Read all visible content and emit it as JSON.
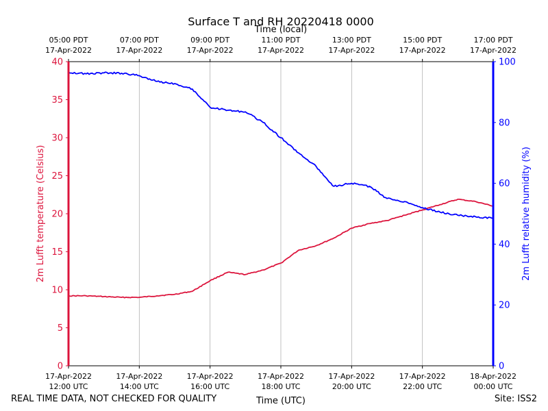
{
  "chart_data": {
    "type": "line",
    "title": "Surface T and RH 20220418 0000",
    "xlabel_top": "Time (local)",
    "xlabel_bottom": "Time (UTC)",
    "ylabel_left": "2m Lufft temperature (Celsius)",
    "ylabel_right": "2m Lufft relative humidity (%)",
    "colors": {
      "temperature": "#dc143c",
      "humidity": "#0000ff",
      "grid": "#b0b0b0"
    },
    "xlim": [
      0,
      12
    ],
    "ylim_left": [
      0,
      40
    ],
    "ylim_right": [
      0,
      100
    ],
    "left_ticks": [
      "0",
      "5",
      "10",
      "15",
      "20",
      "25",
      "30",
      "35",
      "40"
    ],
    "right_ticks": [
      "0",
      "20",
      "40",
      "60",
      "80",
      "100"
    ],
    "bottom_ticks": [
      {
        "line1": "17-Apr-2022",
        "line2": "12:00 UTC"
      },
      {
        "line1": "17-Apr-2022",
        "line2": "14:00 UTC"
      },
      {
        "line1": "17-Apr-2022",
        "line2": "16:00 UTC"
      },
      {
        "line1": "17-Apr-2022",
        "line2": "18:00 UTC"
      },
      {
        "line1": "17-Apr-2022",
        "line2": "20:00 UTC"
      },
      {
        "line1": "17-Apr-2022",
        "line2": "22:00 UTC"
      },
      {
        "line1": "18-Apr-2022",
        "line2": "00:00 UTC"
      }
    ],
    "top_ticks": [
      {
        "line1": "05:00 PDT",
        "line2": "17-Apr-2022"
      },
      {
        "line1": "07:00 PDT",
        "line2": "17-Apr-2022"
      },
      {
        "line1": "09:00 PDT",
        "line2": "17-Apr-2022"
      },
      {
        "line1": "11:00 PDT",
        "line2": "17-Apr-2022"
      },
      {
        "line1": "13:00 PDT",
        "line2": "17-Apr-2022"
      },
      {
        "line1": "15:00 PDT",
        "line2": "17-Apr-2022"
      },
      {
        "line1": "17:00 PDT",
        "line2": "17-Apr-2022"
      }
    ],
    "series": [
      {
        "name": "temperature",
        "axis": "left",
        "x": [
          0,
          0.5,
          1,
          1.5,
          2,
          2.5,
          3,
          3.5,
          4,
          4.5,
          5,
          5.5,
          6,
          6.5,
          7,
          7.5,
          8,
          8.5,
          9,
          9.5,
          10,
          10.5,
          11,
          11.5,
          12
        ],
        "values": [
          9.2,
          9.2,
          9.1,
          9.0,
          9.0,
          9.2,
          9.4,
          9.8,
          11.2,
          12.3,
          12.0,
          12.6,
          13.5,
          15.2,
          15.8,
          16.8,
          18.1,
          18.7,
          19.1,
          19.8,
          20.5,
          21.2,
          21.9,
          21.6,
          21.0
        ]
      },
      {
        "name": "humidity",
        "axis": "right",
        "x": [
          0,
          0.5,
          1,
          1.5,
          2,
          2.5,
          3,
          3.5,
          4,
          4.5,
          5,
          5.5,
          6,
          6.5,
          7,
          7.5,
          8,
          8.5,
          9,
          9.5,
          10,
          10.5,
          11,
          11.5,
          12
        ],
        "values": [
          96.5,
          96.0,
          96.3,
          96.2,
          95.4,
          93.5,
          92.8,
          91.0,
          85.0,
          84.0,
          83.5,
          80.0,
          75.0,
          70.0,
          65.5,
          59.0,
          60.0,
          59.0,
          55.0,
          54.0,
          52.0,
          50.5,
          49.5,
          49.0,
          48.5
        ]
      }
    ]
  },
  "footer": {
    "left": "REAL TIME DATA, NOT CHECKED FOR QUALITY",
    "right": "Site: ISS2"
  }
}
